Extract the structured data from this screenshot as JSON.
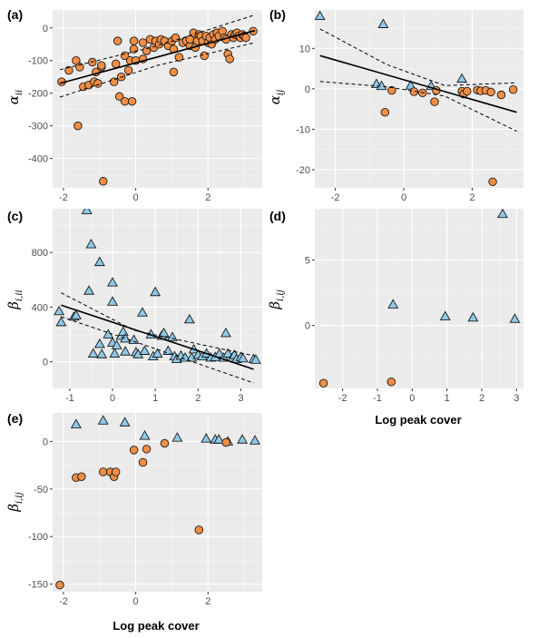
{
  "colors": {
    "circle": "#f28e44",
    "triangle": "#8fc9e8",
    "outline": "#1a1a1a"
  },
  "x_axis_title": "Log peak cover",
  "chart_data": [
    {
      "panel": "(a)",
      "type": "scatter",
      "ylabel": {
        "main": "α",
        "sub": "ii"
      },
      "xlim": [
        -2.3,
        3.5
      ],
      "ylim": [
        -490,
        55
      ],
      "xticks": [
        -2,
        0,
        2
      ],
      "yticks": [
        -400,
        -300,
        -200,
        -100,
        0
      ],
      "fit": {
        "x": [
          -2.1,
          3.3
        ],
        "y": [
          -170,
          -8
        ]
      },
      "ci_upper": {
        "x": [
          -2.1,
          0.6,
          3.3
        ],
        "y": [
          -128,
          -55,
          40
        ]
      },
      "ci_lower": {
        "x": [
          -2.1,
          0.6,
          3.3
        ],
        "y": [
          -212,
          -115,
          -45
        ]
      },
      "series": [
        {
          "shape": "circle",
          "points": [
            [
              -2.05,
              -165
            ],
            [
              -1.85,
              -130
            ],
            [
              -1.65,
              -100
            ],
            [
              -1.55,
              -120
            ],
            [
              -1.6,
              -300
            ],
            [
              -1.45,
              -180
            ],
            [
              -1.3,
              -175
            ],
            [
              -1.2,
              -105
            ],
            [
              -1.15,
              -165
            ],
            [
              -1.05,
              -170
            ],
            [
              -1.1,
              -135
            ],
            [
              -0.95,
              -120
            ],
            [
              -0.95,
              -115
            ],
            [
              -0.9,
              -470
            ],
            [
              -0.6,
              -165
            ],
            [
              -0.55,
              -110
            ],
            [
              -0.5,
              -40
            ],
            [
              -0.45,
              -210
            ],
            [
              -0.4,
              -150
            ],
            [
              -0.3,
              -225
            ],
            [
              -0.3,
              -85
            ],
            [
              -0.2,
              -130
            ],
            [
              -0.15,
              -100
            ],
            [
              -0.1,
              -225
            ],
            [
              -0.05,
              -65
            ],
            [
              -0.05,
              -40
            ],
            [
              0.0,
              -100
            ],
            [
              0.2,
              -95
            ],
            [
              0.2,
              -45
            ],
            [
              0.3,
              -70
            ],
            [
              0.4,
              -35
            ],
            [
              0.5,
              -60
            ],
            [
              0.55,
              -40
            ],
            [
              0.65,
              -50
            ],
            [
              0.7,
              -35
            ],
            [
              0.8,
              -40
            ],
            [
              0.9,
              -55
            ],
            [
              1.0,
              -40
            ],
            [
              1.05,
              -135
            ],
            [
              1.05,
              -65
            ],
            [
              1.1,
              -30
            ],
            [
              1.2,
              -90
            ],
            [
              1.3,
              -45
            ],
            [
              1.4,
              -40
            ],
            [
              1.5,
              -55
            ],
            [
              1.5,
              -35
            ],
            [
              1.6,
              -15
            ],
            [
              1.65,
              -60
            ],
            [
              1.7,
              -40
            ],
            [
              1.75,
              -20
            ],
            [
              1.8,
              -25
            ],
            [
              1.85,
              -40
            ],
            [
              1.9,
              -85
            ],
            [
              1.95,
              -25
            ],
            [
              2.0,
              -45
            ],
            [
              2.05,
              -30
            ],
            [
              2.1,
              -50
            ],
            [
              2.15,
              -20
            ],
            [
              2.2,
              -35
            ],
            [
              2.25,
              -15
            ],
            [
              2.3,
              -25
            ],
            [
              2.4,
              -10
            ],
            [
              2.45,
              -30
            ],
            [
              2.5,
              -35
            ],
            [
              2.55,
              -80
            ],
            [
              2.6,
              -95
            ],
            [
              2.65,
              -20
            ],
            [
              2.7,
              -30
            ],
            [
              2.75,
              -20
            ],
            [
              2.8,
              -15
            ],
            [
              2.85,
              -25
            ],
            [
              2.9,
              -30
            ],
            [
              2.95,
              -20
            ],
            [
              3.0,
              -25
            ],
            [
              3.05,
              -30
            ],
            [
              3.25,
              -10
            ]
          ]
        }
      ]
    },
    {
      "panel": "(b)",
      "type": "scatter",
      "ylabel": {
        "main": "α",
        "sub": "ij"
      },
      "xlim": [
        -2.6,
        3.5
      ],
      "ylim": [
        -24.5,
        19.5
      ],
      "xticks": [
        -2,
        0,
        2
      ],
      "yticks": [
        -20,
        -10,
        0,
        10
      ],
      "fit": {
        "x": [
          -2.45,
          3.3
        ],
        "y": [
          8.2,
          -5.8
        ]
      },
      "ci_upper": {
        "x": [
          -2.45,
          -0.5,
          1.2,
          3.3
        ],
        "y": [
          14.8,
          6.0,
          0.8,
          1.5
        ]
      },
      "ci_lower": {
        "x": [
          -2.45,
          -0.5,
          1.2,
          3.3
        ],
        "y": [
          1.8,
          0.5,
          -1.8,
          -10.5
        ]
      },
      "series": [
        {
          "shape": "triangle",
          "points": [
            [
              -2.45,
              18
            ],
            [
              -0.8,
              1.2
            ],
            [
              -0.65,
              0.7
            ],
            [
              -0.6,
              16
            ],
            [
              0.2,
              0.8
            ],
            [
              0.8,
              0.7
            ],
            [
              1.7,
              2.5
            ]
          ]
        },
        {
          "shape": "circle",
          "points": [
            [
              -0.55,
              -5.8
            ],
            [
              -0.35,
              -0.4
            ],
            [
              0.3,
              -0.7
            ],
            [
              0.55,
              -1.0
            ],
            [
              0.9,
              -3.2
            ],
            [
              0.95,
              -0.4
            ],
            [
              1.7,
              -0.6
            ],
            [
              1.75,
              -1.3
            ],
            [
              1.85,
              -0.6
            ],
            [
              2.15,
              -0.3
            ],
            [
              2.25,
              -0.5
            ],
            [
              2.4,
              -0.4
            ],
            [
              2.55,
              -0.8
            ],
            [
              2.6,
              -23
            ],
            [
              2.85,
              -1.5
            ],
            [
              3.2,
              -0.2
            ]
          ]
        }
      ]
    },
    {
      "panel": "(c)",
      "type": "scatter",
      "ylabel": {
        "main": "β",
        "sub": "i,ii"
      },
      "xlim": [
        -1.4,
        3.5
      ],
      "ylim": [
        -195,
        1120
      ],
      "xticks": [
        -1,
        0,
        1,
        2,
        3
      ],
      "yticks": [
        0,
        400,
        800
      ],
      "fit": {
        "x": [
          -1.2,
          3.3
        ],
        "y": [
          415,
          -55
        ]
      },
      "ci_upper": {
        "x": [
          -1.2,
          0.5,
          3.3
        ],
        "y": [
          505,
          230,
          45
        ]
      },
      "ci_lower": {
        "x": [
          -1.2,
          0.5,
          3.3
        ],
        "y": [
          330,
          150,
          -155
        ]
      },
      "series": [
        {
          "shape": "triangle",
          "points": [
            [
              -1.25,
              370
            ],
            [
              -1.2,
              290
            ],
            [
              -0.9,
              330
            ],
            [
              -0.85,
              340
            ],
            [
              -0.6,
              1110
            ],
            [
              -0.55,
              520
            ],
            [
              -0.5,
              860
            ],
            [
              -0.45,
              60
            ],
            [
              -0.3,
              130
            ],
            [
              -0.3,
              730
            ],
            [
              -0.25,
              55
            ],
            [
              -0.1,
              200
            ],
            [
              0.0,
              580
            ],
            [
              0.0,
              440
            ],
            [
              0.0,
              140
            ],
            [
              0.05,
              60
            ],
            [
              0.1,
              120
            ],
            [
              0.2,
              190
            ],
            [
              0.25,
              220
            ],
            [
              0.3,
              170
            ],
            [
              0.3,
              75
            ],
            [
              0.5,
              160
            ],
            [
              0.55,
              70
            ],
            [
              0.6,
              55
            ],
            [
              0.7,
              360
            ],
            [
              0.75,
              80
            ],
            [
              0.9,
              200
            ],
            [
              0.95,
              40
            ],
            [
              1.0,
              510
            ],
            [
              1.05,
              60
            ],
            [
              1.15,
              190
            ],
            [
              1.2,
              210
            ],
            [
              1.3,
              80
            ],
            [
              1.4,
              180
            ],
            [
              1.45,
              40
            ],
            [
              1.5,
              20
            ],
            [
              1.6,
              45
            ],
            [
              1.7,
              30
            ],
            [
              1.8,
              310
            ],
            [
              1.85,
              30
            ],
            [
              1.9,
              90
            ],
            [
              2.0,
              50
            ],
            [
              2.1,
              40
            ],
            [
              2.2,
              60
            ],
            [
              2.3,
              30
            ],
            [
              2.4,
              35
            ],
            [
              2.5,
              60
            ],
            [
              2.6,
              30
            ],
            [
              2.65,
              210
            ],
            [
              2.7,
              60
            ],
            [
              2.8,
              30
            ],
            [
              2.85,
              50
            ],
            [
              2.9,
              20
            ],
            [
              3.0,
              35
            ],
            [
              3.05,
              25
            ],
            [
              3.3,
              20
            ],
            [
              3.35,
              15
            ]
          ]
        }
      ]
    },
    {
      "panel": "(d)",
      "type": "scatter",
      "ylabel": {
        "main": "β",
        "sub": "i,ij"
      },
      "xlim": [
        -2.8,
        3.2
      ],
      "ylim": [
        -4.8,
        8.9
      ],
      "xticks": [
        -2,
        -1,
        0,
        1,
        2,
        3
      ],
      "yticks": [
        0,
        5
      ],
      "series": [
        {
          "shape": "triangle",
          "points": [
            [
              -0.55,
              1.6
            ],
            [
              0.95,
              0.7
            ],
            [
              1.75,
              0.6
            ],
            [
              2.6,
              8.5
            ],
            [
              2.95,
              0.5
            ]
          ]
        },
        {
          "shape": "circle",
          "points": [
            [
              -2.55,
              -4.4
            ],
            [
              -0.6,
              -4.3
            ]
          ]
        }
      ]
    },
    {
      "panel": "(e)",
      "type": "scatter",
      "ylabel": {
        "main": "β",
        "sub": "i,ij"
      },
      "xlim": [
        -2.3,
        3.5
      ],
      "ylim": [
        -158,
        30
      ],
      "xticks": [
        -2,
        0,
        2
      ],
      "yticks": [
        -150,
        -100,
        -50,
        0
      ],
      "series": [
        {
          "shape": "triangle",
          "points": [
            [
              -1.65,
              18
            ],
            [
              -0.9,
              22
            ],
            [
              -0.3,
              20
            ],
            [
              0.25,
              6
            ],
            [
              1.15,
              4
            ],
            [
              1.95,
              3
            ],
            [
              2.55,
              0
            ],
            [
              2.95,
              2
            ],
            [
              2.2,
              2
            ],
            [
              2.3,
              2
            ],
            [
              3.3,
              1
            ]
          ]
        },
        {
          "shape": "circle",
          "points": [
            [
              -2.1,
              -151
            ],
            [
              -1.65,
              -38
            ],
            [
              -1.5,
              -37
            ],
            [
              -0.9,
              -32
            ],
            [
              -0.7,
              -32
            ],
            [
              -0.6,
              -37
            ],
            [
              -0.55,
              -32
            ],
            [
              -0.05,
              -9
            ],
            [
              0.2,
              -22
            ],
            [
              0.3,
              -8
            ],
            [
              0.8,
              -2
            ],
            [
              1.75,
              -93
            ],
            [
              2.5,
              -1
            ]
          ]
        }
      ]
    }
  ]
}
